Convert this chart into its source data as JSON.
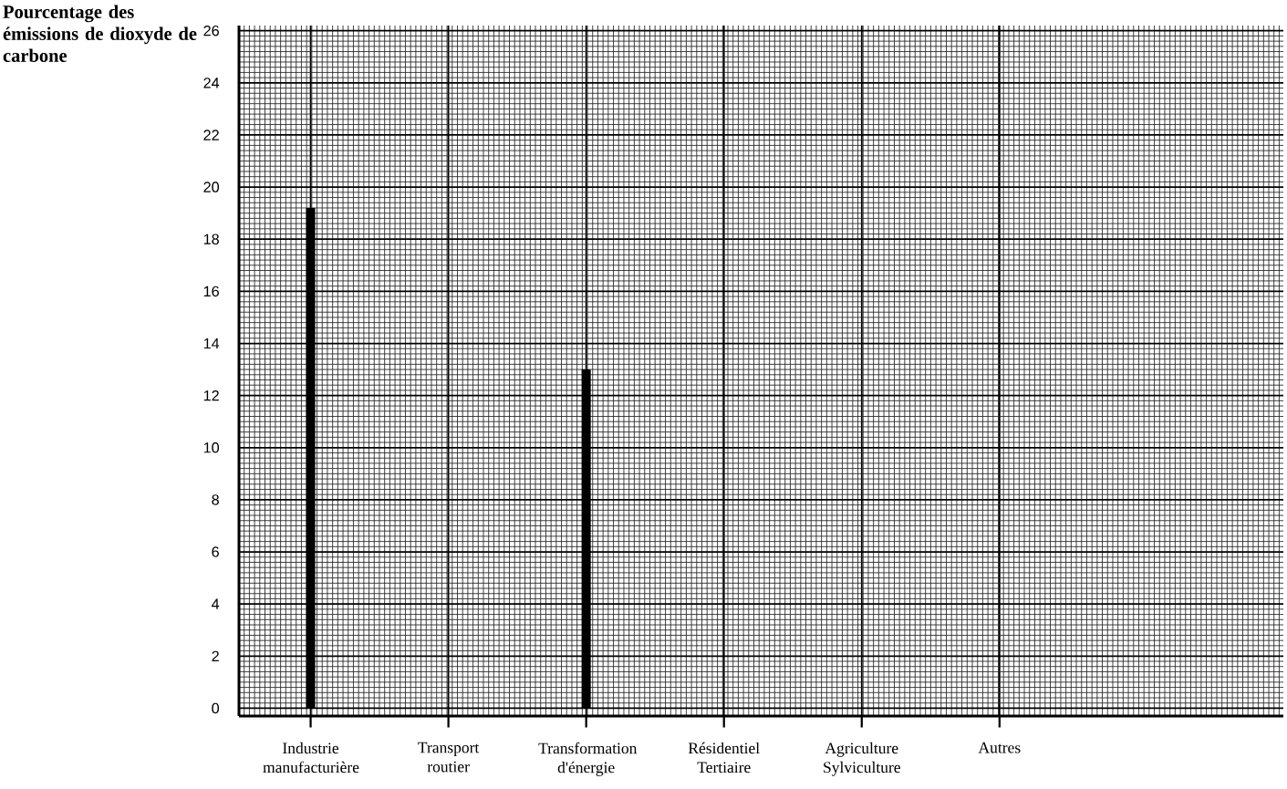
{
  "chart_data": {
    "type": "bar",
    "ylabel": "Pourcentage des émissions de dioxyde de carbone",
    "categories": [
      "Industrie manufacturière",
      "Transport routier",
      "Transformation d'énergie",
      "Résidentiel Tertiaire",
      "Agriculture Sylviculture",
      "Autres"
    ],
    "values": [
      19.2,
      null,
      13,
      null,
      null,
      null
    ],
    "color": "#000000",
    "ylim": [
      -0.3,
      26.2
    ],
    "yticks": [
      0,
      2,
      4,
      6,
      8,
      10,
      12,
      14,
      16,
      18,
      20,
      22,
      24,
      26
    ],
    "grid": true
  }
}
